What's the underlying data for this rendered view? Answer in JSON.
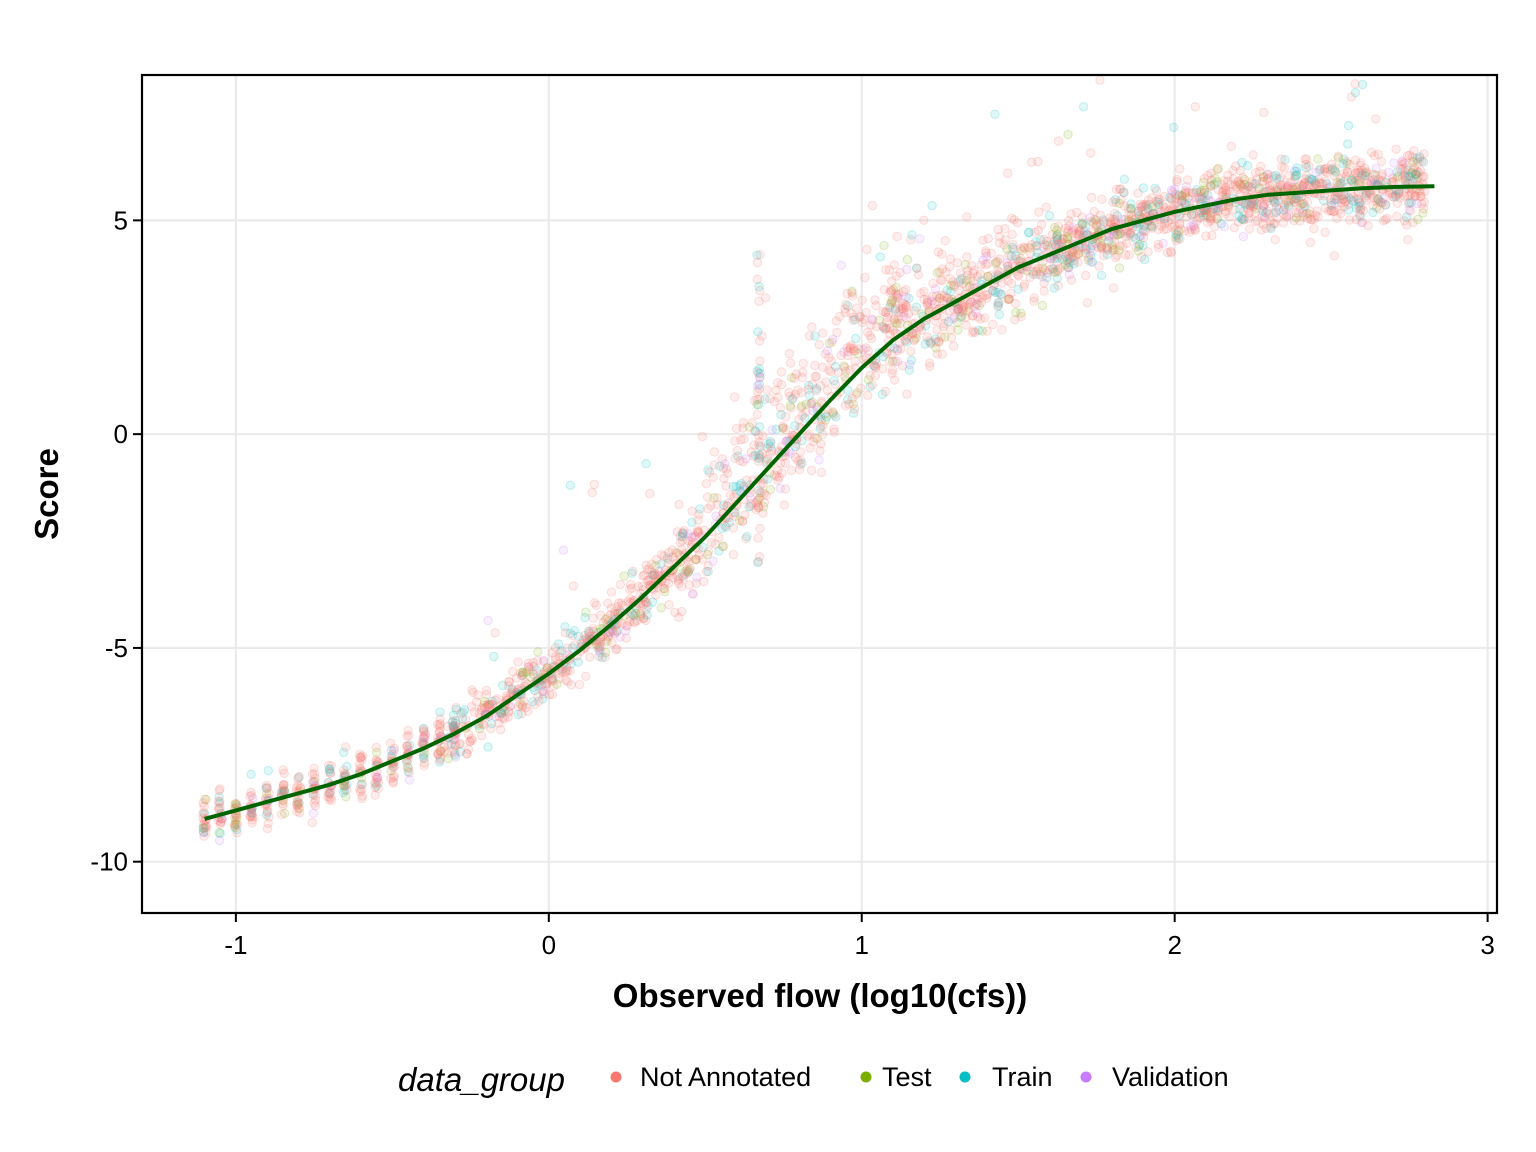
{
  "chart_data": {
    "type": "scatter",
    "title": "",
    "xlabel": "Observed flow (log10(cfs))",
    "ylabel": "Score",
    "xlim": [
      -1.3,
      3.03
    ],
    "ylim": [
      -11.2,
      8.4
    ],
    "x_ticks": [
      -1,
      0,
      1,
      2,
      3
    ],
    "y_ticks": [
      -10,
      -5,
      0,
      5
    ],
    "x_tick_labels": [
      "-1",
      "0",
      "1",
      "2",
      "3"
    ],
    "y_tick_labels": [
      "-10",
      "-5",
      "0",
      "5"
    ],
    "grid": true,
    "legend": {
      "title": "data_group",
      "placement": "bottom",
      "entries": [
        "Not Annotated",
        "Test",
        "Train",
        "Validation"
      ]
    },
    "series": [
      {
        "name": "Not Annotated",
        "color": "#F8766D",
        "opacity": 0.15
      },
      {
        "name": "Test",
        "color": "#7CAE00",
        "opacity": 0.15
      },
      {
        "name": "Train",
        "color": "#00BFC4",
        "opacity": 0.15
      },
      {
        "name": "Validation",
        "color": "#C77CFF",
        "opacity": 0.15
      }
    ],
    "trend_line": {
      "color": "#006400",
      "x": [
        -1.1,
        -1.0,
        -0.9,
        -0.8,
        -0.7,
        -0.6,
        -0.5,
        -0.4,
        -0.3,
        -0.2,
        -0.1,
        0.0,
        0.1,
        0.2,
        0.3,
        0.4,
        0.5,
        0.6,
        0.7,
        0.8,
        0.9,
        1.0,
        1.1,
        1.2,
        1.3,
        1.4,
        1.5,
        1.6,
        1.7,
        1.8,
        1.9,
        2.0,
        2.1,
        2.2,
        2.3,
        2.4,
        2.5,
        2.6,
        2.7,
        2.83
      ],
      "y": [
        -9.0,
        -8.8,
        -8.6,
        -8.4,
        -8.2,
        -7.95,
        -7.65,
        -7.35,
        -7.0,
        -6.6,
        -6.1,
        -5.6,
        -5.05,
        -4.45,
        -3.8,
        -3.1,
        -2.4,
        -1.6,
        -0.8,
        0.0,
        0.8,
        1.55,
        2.2,
        2.7,
        3.1,
        3.5,
        3.9,
        4.2,
        4.5,
        4.8,
        5.0,
        5.2,
        5.35,
        5.5,
        5.6,
        5.65,
        5.7,
        5.75,
        5.78,
        5.8
      ]
    },
    "points": []
  }
}
